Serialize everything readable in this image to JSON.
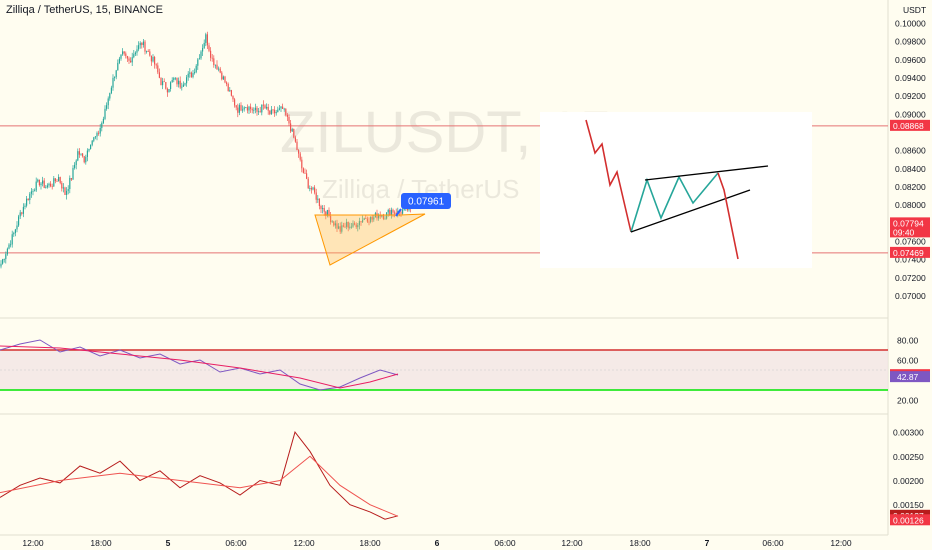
{
  "header": {
    "title": "Zilliqa / TetherUS, 15, BINANCE"
  },
  "watermark": {
    "symbol": "ZILUSDT, 15",
    "name": "Zilliqa / TetherUS"
  },
  "colors": {
    "up": "#26a69a",
    "down": "#ef5350",
    "bg": "#fffdf0",
    "hline_red": "#e57373",
    "rsi_line": "#7e57c2",
    "rsi_ma": "#e91e63",
    "green_line": "#00e600",
    "red_line": "#d32f2f"
  },
  "chart_data": [
    {
      "type": "candlestick",
      "title": "Zilliqa / TetherUS, 15, BINANCE",
      "unit": "USDT",
      "y_ticks": [
        "0.10000",
        "0.09800",
        "0.09600",
        "0.09400",
        "0.09200",
        "0.09000",
        "0.08600",
        "0.08400",
        "0.08200",
        "0.08000",
        "0.07600",
        "0.07400",
        "0.07200",
        "0.07000"
      ],
      "price_labels": [
        {
          "value": "0.08868",
          "color": "#f23645"
        },
        {
          "value": "0.07794",
          "sub": "09:40",
          "color": "#f23645"
        },
        {
          "value": "0.07469",
          "color": "#f23645"
        }
      ],
      "horizontal_lines": [
        0.08868,
        0.07469
      ],
      "pattern_label": "0.07961",
      "ylim": [
        0.0695,
        0.101
      ],
      "close_path": [
        [
          0,
          0.0735
        ],
        [
          4,
          0.0752
        ],
        [
          8,
          0.0768
        ],
        [
          12,
          0.079
        ],
        [
          16,
          0.0805
        ],
        [
          20,
          0.0818
        ],
        [
          24,
          0.0825
        ],
        [
          28,
          0.082
        ],
        [
          32,
          0.0823
        ],
        [
          36,
          0.083
        ],
        [
          40,
          0.0812
        ],
        [
          44,
          0.083
        ],
        [
          48,
          0.0858
        ],
        [
          52,
          0.085
        ],
        [
          56,
          0.087
        ],
        [
          60,
          0.0875
        ],
        [
          64,
          0.0895
        ],
        [
          68,
          0.0925
        ],
        [
          72,
          0.095
        ],
        [
          76,
          0.0965
        ],
        [
          80,
          0.0958
        ],
        [
          84,
          0.097
        ],
        [
          88,
          0.0978
        ],
        [
          92,
          0.0968
        ],
        [
          96,
          0.0955
        ],
        [
          100,
          0.0935
        ],
        [
          104,
          0.0928
        ],
        [
          108,
          0.0938
        ],
        [
          112,
          0.0932
        ],
        [
          116,
          0.094
        ],
        [
          120,
          0.0945
        ],
        [
          124,
          0.0965
        ],
        [
          128,
          0.0985
        ],
        [
          132,
          0.096
        ],
        [
          136,
          0.095
        ],
        [
          140,
          0.0935
        ],
        [
          144,
          0.0918
        ],
        [
          148,
          0.0905
        ],
        [
          152,
          0.091
        ],
        [
          156,
          0.0906
        ],
        [
          160,
          0.0902
        ],
        [
          164,
          0.0908
        ],
        [
          168,
          0.09
        ],
        [
          172,
          0.0902
        ],
        [
          176,
          0.0905
        ],
        [
          180,
          0.089
        ],
        [
          184,
          0.0868
        ],
        [
          188,
          0.084
        ],
        [
          192,
          0.0822
        ],
        [
          196,
          0.0812
        ],
        [
          200,
          0.0798
        ],
        [
          204,
          0.079
        ],
        [
          208,
          0.078
        ],
        [
          212,
          0.0772
        ],
        [
          216,
          0.0778
        ],
        [
          220,
          0.0776
        ],
        [
          224,
          0.0782
        ],
        [
          228,
          0.0786
        ],
        [
          232,
          0.0784
        ],
        [
          236,
          0.079
        ],
        [
          240,
          0.0788
        ],
        [
          244,
          0.0794
        ],
        [
          248,
          0.0791
        ],
        [
          252,
          0.0794
        ],
        [
          256,
          0.0796
        ]
      ],
      "x_ticks": [
        "12:00",
        "18:00",
        "5",
        "06:00",
        "12:00",
        "18:00",
        "6",
        "06:00",
        "12:00",
        "18:00",
        "7",
        "06:00",
        "12:00"
      ]
    },
    {
      "type": "line",
      "title": "RSI",
      "y_ticks": [
        "80.00",
        "60.00",
        "20.00"
      ],
      "levels": [
        70,
        30
      ],
      "value_labels": [
        {
          "value": "44.82",
          "color": "#f23645"
        },
        {
          "value": "42.87",
          "color": "#7e57c2"
        }
      ],
      "ylim": [
        10,
        95
      ]
    },
    {
      "type": "line",
      "title": "ATR",
      "y_ticks": [
        "0.00300",
        "0.00250",
        "0.00200",
        "0.00150"
      ],
      "value_labels": [
        {
          "value": "0.00127",
          "color": "#b71c1c"
        },
        {
          "value": "0.00126",
          "color": "#f23645"
        }
      ],
      "ylim": [
        0.00108,
        0.00325
      ]
    }
  ]
}
